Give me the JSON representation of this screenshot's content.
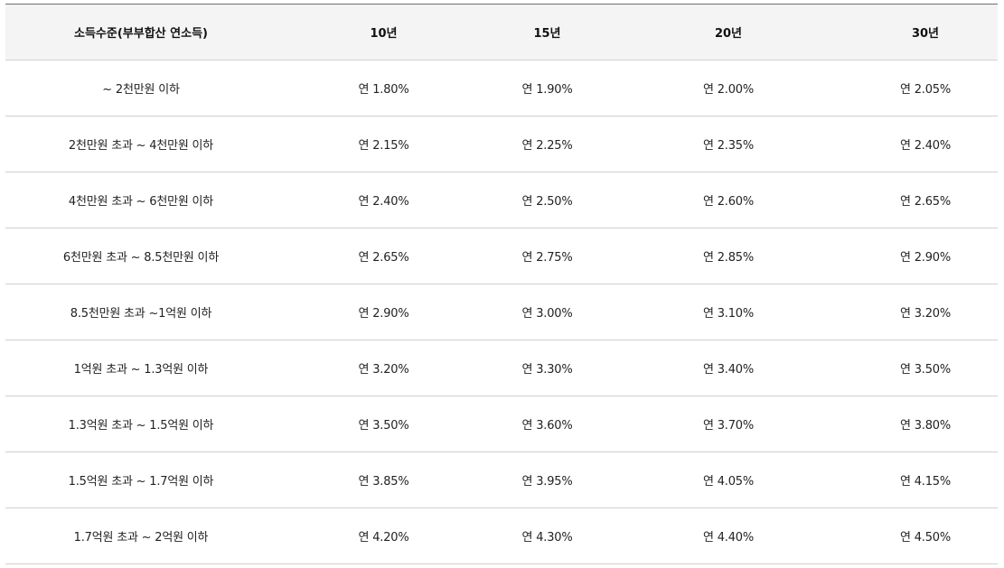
{
  "table": {
    "headers": [
      "소득수준(부부합산 연소득)",
      "10년",
      "15년",
      "20년",
      "30년"
    ],
    "rows": [
      [
        "~ 2천만원 이하",
        "연 1.80%",
        "연 1.90%",
        "연 2.00%",
        "연 2.05%"
      ],
      [
        "2천만원 초과 ~ 4천만원 이하",
        "연 2.15%",
        "연 2.25%",
        "연 2.35%",
        "연 2.40%"
      ],
      [
        "4천만원 초과 ~ 6천만원 이하",
        "연 2.40%",
        "연 2.50%",
        "연 2.60%",
        "연 2.65%"
      ],
      [
        "6천만원 초과 ~ 8.5천만원 이하",
        "연 2.65%",
        "연 2.75%",
        "연 2.85%",
        "연 2.90%"
      ],
      [
        "8.5천만원 초과 ~1억원 이하",
        "연 2.90%",
        "연 3.00%",
        "연 3.10%",
        "연 3.20%"
      ],
      [
        "1억원 초과 ~ 1.3억원 이하",
        "연 3.20%",
        "연 3.30%",
        "연 3.40%",
        "연 3.50%"
      ],
      [
        "1.3억원 초과 ~ 1.5억원 이하",
        "연 3.50%",
        "연 3.60%",
        "연 3.70%",
        "연 3.80%"
      ],
      [
        "1.5억원 초과 ~ 1.7억원 이하",
        "연 3.85%",
        "연 3.95%",
        "연 4.05%",
        "연 4.15%"
      ],
      [
        "1.7억원 초과 ~ 2억원 이하",
        "연 4.20%",
        "연 4.30%",
        "연 4.40%",
        "연 4.50%"
      ]
    ]
  }
}
